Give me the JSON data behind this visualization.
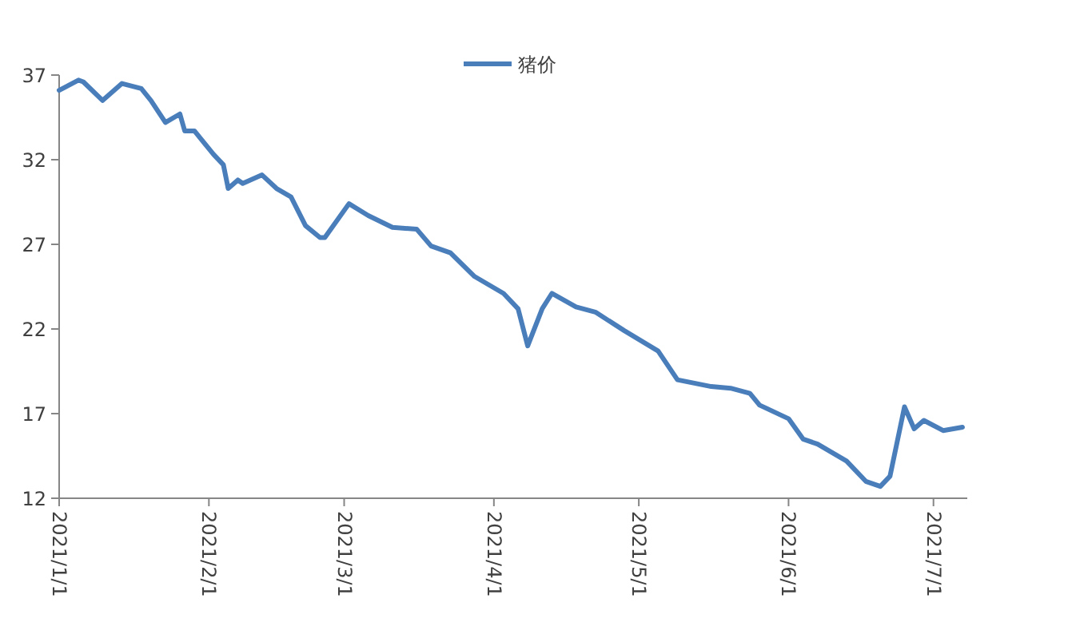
{
  "chart_data": {
    "type": "line",
    "legend": "top",
    "marker": "none",
    "line_style": "solid",
    "grid": false,
    "x": [
      "2021-01-01",
      "2021-01-05",
      "2021-01-06",
      "2021-01-10",
      "2021-01-14",
      "2021-01-18",
      "2021-01-20",
      "2021-01-23",
      "2021-01-26",
      "2021-01-27",
      "2021-01-29",
      "2021-02-02",
      "2021-02-04",
      "2021-02-05",
      "2021-02-07",
      "2021-02-08",
      "2021-02-12",
      "2021-02-15",
      "2021-02-18",
      "2021-02-21",
      "2021-02-24",
      "2021-02-25",
      "2021-03-02",
      "2021-03-06",
      "2021-03-11",
      "2021-03-16",
      "2021-03-19",
      "2021-03-23",
      "2021-03-28",
      "2021-04-03",
      "2021-04-06",
      "2021-04-08",
      "2021-04-11",
      "2021-04-13",
      "2021-04-18",
      "2021-04-22",
      "2021-04-28",
      "2021-05-05",
      "2021-05-09",
      "2021-05-16",
      "2021-05-20",
      "2021-05-24",
      "2021-05-26",
      "2021-06-01",
      "2021-06-04",
      "2021-06-07",
      "2021-06-13",
      "2021-06-17",
      "2021-06-20",
      "2021-06-22",
      "2021-06-25",
      "2021-06-27",
      "2021-06-29",
      "2021-07-03",
      "2021-07-07"
    ],
    "series": [
      {
        "name": "猪价",
        "color": "#4a7ebb",
        "values": [
          36.1,
          36.7,
          36.6,
          35.5,
          36.5,
          36.2,
          35.5,
          34.2,
          34.7,
          33.7,
          33.7,
          32.3,
          31.7,
          30.3,
          30.8,
          30.6,
          31.1,
          30.3,
          29.8,
          28.1,
          27.4,
          27.4,
          29.4,
          28.7,
          28.0,
          27.9,
          26.9,
          26.5,
          25.1,
          24.1,
          23.2,
          21.0,
          23.2,
          24.1,
          23.3,
          23.0,
          21.9,
          20.7,
          19.0,
          18.6,
          18.5,
          18.2,
          17.5,
          16.7,
          15.5,
          15.2,
          14.2,
          13.0,
          12.7,
          13.3,
          17.4,
          16.1,
          16.6,
          16.0,
          16.2
        ]
      }
    ],
    "xlim": [
      "2021-01-01",
      "2021-07-08"
    ],
    "xticks": [
      {
        "value": "2021-01-01",
        "label": "2021/1/1"
      },
      {
        "value": "2021-02-01",
        "label": "2021/2/1"
      },
      {
        "value": "2021-03-01",
        "label": "2021/3/1"
      },
      {
        "value": "2021-04-01",
        "label": "2021/4/1"
      },
      {
        "value": "2021-05-01",
        "label": "2021/5/1"
      },
      {
        "value": "2021-06-01",
        "label": "2021/6/1"
      },
      {
        "value": "2021-07-01",
        "label": "2021/7/1"
      }
    ],
    "ylim": [
      12,
      37
    ],
    "yticks": [
      12,
      17,
      22,
      27,
      32,
      37
    ]
  }
}
